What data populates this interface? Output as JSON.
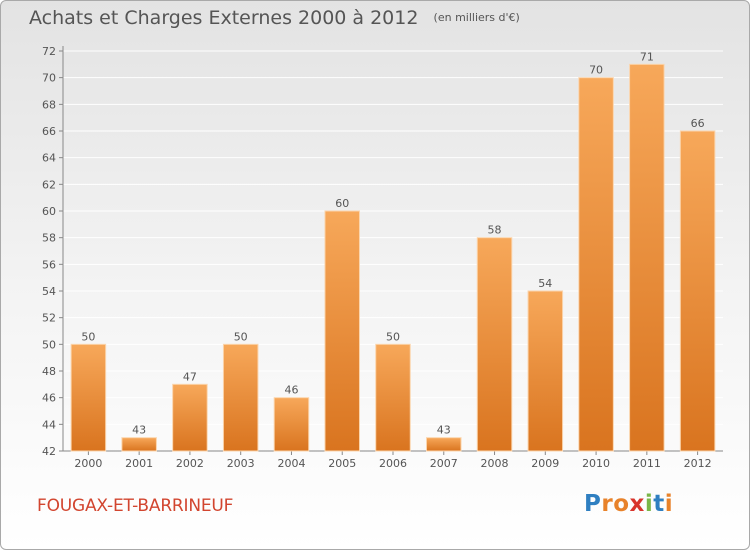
{
  "header": {
    "title": "Achats et Charges Externes 2000 à 2012",
    "subtitle": "(en milliers d'€)"
  },
  "footer": {
    "commune": "FOUGAX-ET-BARRINEUF",
    "logo_letters": [
      "P",
      "r",
      "o",
      "x",
      "i",
      "t",
      "i"
    ],
    "logo_colors": [
      "#2f7fc1",
      "#e8822a",
      "#e8822a",
      "#d8342c",
      "#7ab648",
      "#2f7fc1",
      "#e8822a"
    ]
  },
  "chart_data": {
    "type": "bar",
    "categories": [
      "2000",
      "2001",
      "2002",
      "2003",
      "2004",
      "2005",
      "2006",
      "2007",
      "2008",
      "2009",
      "2010",
      "2011",
      "2012"
    ],
    "values": [
      50,
      43,
      47,
      50,
      46,
      60,
      50,
      43,
      58,
      54,
      70,
      71,
      66
    ],
    "title": "Achats et Charges Externes 2000 à 2012",
    "subtitle": "(en milliers d'€)",
    "ylim": [
      42,
      72
    ],
    "yticks": [
      42,
      44,
      46,
      48,
      50,
      52,
      54,
      56,
      58,
      60,
      62,
      64,
      66,
      68,
      70,
      72
    ],
    "grid": true,
    "colors": {
      "bar_light": "#f7a85a",
      "bar_dark": "#d9741f",
      "grid": "#ffffff",
      "text": "#555555"
    }
  }
}
